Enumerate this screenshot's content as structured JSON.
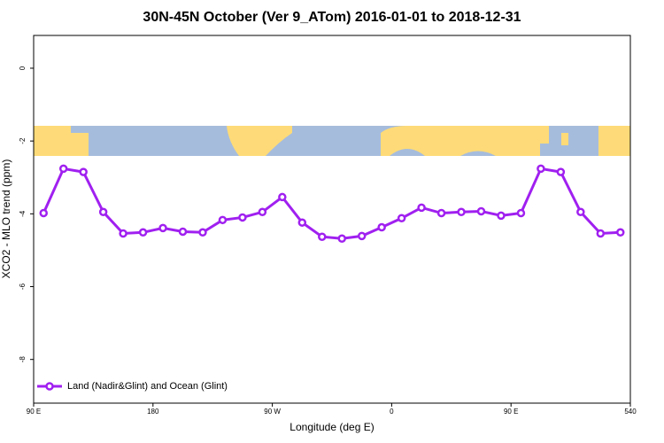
{
  "chart_data": {
    "type": "line",
    "title": "30N-45N October (Ver 9_ATom)   2016-01-01 to 2018-12-31",
    "x_label": "Longitude (deg E)",
    "y_label": "XCO2 - MLO trend (ppm)",
    "x": [
      97.5,
      112.5,
      127.5,
      142.5,
      157.5,
      172.5,
      187.5,
      202.5,
      217.5,
      232.5,
      247.5,
      262.5,
      277.5,
      292.5,
      307.5,
      322.5,
      337.5,
      352.5,
      367.5,
      382.5,
      397.5,
      412.5,
      427.5,
      442.5,
      457.5,
      472.5,
      487.5,
      502.5,
      517.5,
      532.5
    ],
    "series": [
      {
        "name": "Land (Nadir&Glint) and Ocean (Glint)",
        "color": "#a020f0",
        "values": [
          -3.98,
          -2.76,
          -2.85,
          -3.95,
          -4.54,
          -4.51,
          -4.39,
          -4.49,
          -4.51,
          -4.17,
          -4.1,
          -3.95,
          -3.54,
          -4.24,
          -4.63,
          -4.68,
          -4.61,
          -4.37,
          -4.12,
          -3.83,
          -3.98,
          -3.95,
          -3.93,
          -4.05,
          -3.98,
          -2.76,
          -2.85,
          -3.95,
          -4.54,
          -4.51
        ]
      }
    ],
    "xlim": [
      90,
      540
    ],
    "xticks": [
      {
        "value": 90,
        "label": "90 E"
      },
      180,
      {
        "value": 270,
        "label": "90 W"
      },
      {
        "value": 360,
        "label": "0"
      },
      {
        "value": 450,
        "label": "90 E"
      },
      540
    ],
    "ylim": [
      -9.2,
      0.9
    ],
    "yticks": [
      0,
      -2,
      -4,
      -6,
      -8
    ],
    "legend": "bottom-left"
  }
}
